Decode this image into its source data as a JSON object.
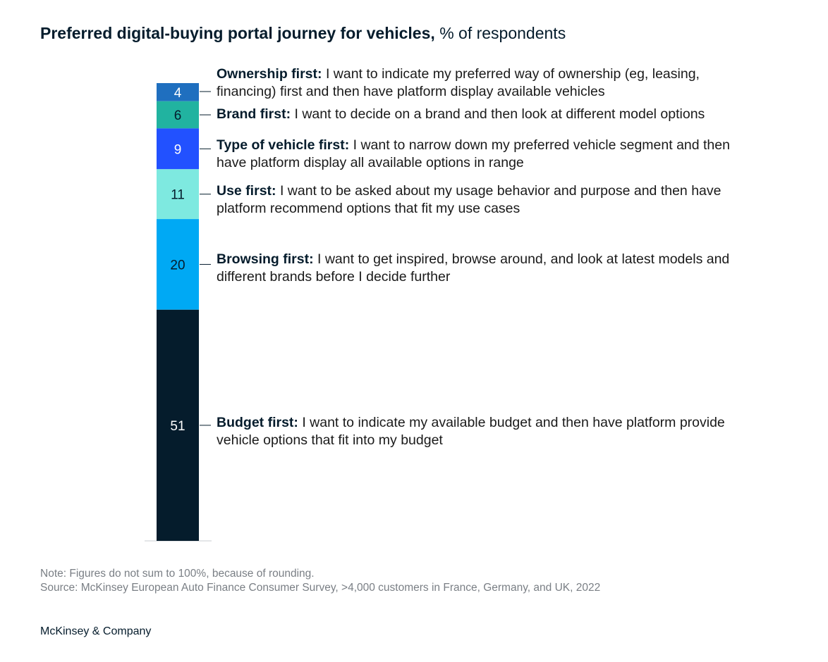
{
  "title": {
    "bold": "Preferred digital-buying portal journey for vehicles,",
    "light": "% of respondents"
  },
  "chart_data": {
    "type": "bar",
    "stacked": true,
    "orientation": "vertical",
    "title": "Preferred digital-buying portal journey for vehicles,",
    "ylabel": "% of respondents",
    "categories": [
      "Ownership first",
      "Brand first",
      "Type of vehicle first",
      "Use first",
      "Browsing first",
      "Budget first"
    ],
    "values": [
      4,
      6,
      9,
      11,
      20,
      51
    ],
    "labels": [
      "4",
      "6",
      "9",
      "11",
      "20",
      "51"
    ],
    "colors": [
      "#1f6fbf",
      "#21b3a0",
      "#2251ff",
      "#7ee9e0",
      "#00a9f4",
      "#051c2c"
    ],
    "label_colors": [
      "#ffffff",
      "#051c2c",
      "#ffffff",
      "#051c2c",
      "#051c2c",
      "#ffffff"
    ],
    "segments": [
      {
        "name": "Ownership first:",
        "text": "I want to indicate my preferred way of ownership (eg, leasing, financing) first and then have platform display available vehicles"
      },
      {
        "name": "Brand first:",
        "text": "I want to decide on a brand and then look at different model options"
      },
      {
        "name": "Type of vehicle first:",
        "text": "I want to narrow down my preferred vehicle segment and then have platform display all available options in range"
      },
      {
        "name": "Use first:",
        "text": "I want to be asked about my usage behavior and purpose and then have platform recommend options that fit my use cases"
      },
      {
        "name": "Browsing first:",
        "text": "I want to get inspired, browse around, and look at latest models and different brands before I decide further"
      },
      {
        "name": "Budget first:",
        "text": "I want to indicate my available budget and then have platform provide vehicle options that fit into my budget"
      }
    ]
  },
  "footer": {
    "note": "Note: Figures do not sum to 100%, because of rounding.",
    "source": "Source: McKinsey European Auto Finance Consumer Survey, >4,000 customers in France, Germany, and UK, 2022",
    "brand": "McKinsey & Company"
  }
}
